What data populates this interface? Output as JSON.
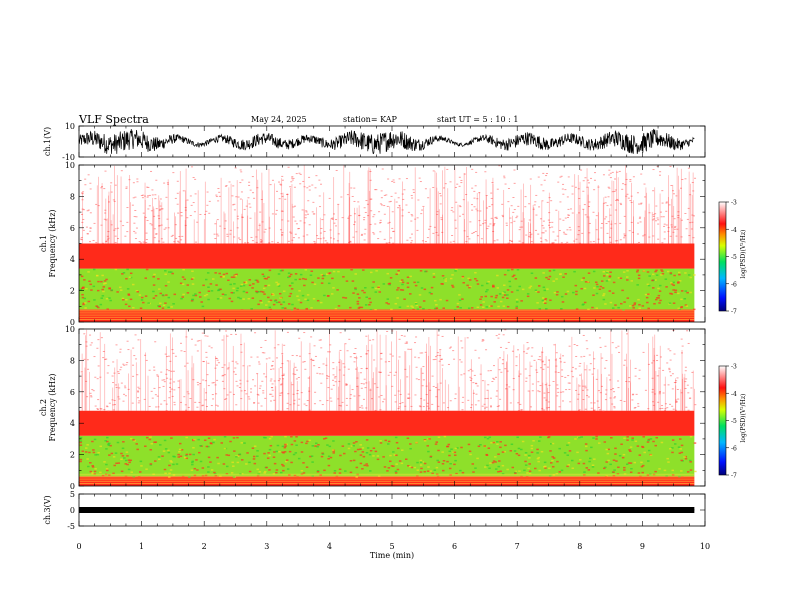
{
  "header": {
    "title": "VLF Spectra",
    "date": "May 24, 2025",
    "station": "station= KAP",
    "start": "start  UT  =   5  : 10 : 1"
  },
  "colors": {
    "spectrogram_low": "#ffffff",
    "spectrogram_mid": "#ff2020",
    "spectrogram_band": "#7fe01a",
    "trace": "#000000"
  },
  "chart_data": [
    {
      "type": "line",
      "panel": "ch1-waveform",
      "ylabel": "ch.1(V)",
      "ylim": [
        -10,
        10
      ],
      "yticks": [
        "10",
        "-10"
      ],
      "xlim": [
        0,
        10
      ],
      "x_end": 9.83,
      "series": [
        {
          "values_range": [
            -8,
            8
          ]
        }
      ]
    },
    {
      "type": "heatmap",
      "panel": "ch1-spectrogram",
      "ylabel": "ch.1\nFrequency (kHz)",
      "ylim": [
        0,
        10
      ],
      "yticks": [
        "0",
        "2",
        "4",
        "6",
        "8",
        "10"
      ],
      "xlim": [
        0,
        10
      ],
      "x_end": 9.83,
      "bands_khz": [
        {
          "from": 0,
          "to": 0.8,
          "level": "mid"
        },
        {
          "from": 0.8,
          "to": 3.4,
          "level": "band"
        },
        {
          "from": 3.4,
          "to": 5.0,
          "level": "mid"
        },
        {
          "from": 5.0,
          "to": 10,
          "level": "low"
        }
      ],
      "colorbar": {
        "label": "log(PSD)(V²/Hz)",
        "ticks": [
          "-3",
          "-4",
          "-5",
          "-6",
          "-7"
        ],
        "range": [
          -7,
          -3
        ]
      }
    },
    {
      "type": "heatmap",
      "panel": "ch2-spectrogram",
      "ylabel": "ch.2\nFrequency (kHz)",
      "ylim": [
        0,
        10
      ],
      "yticks": [
        "0",
        "2",
        "4",
        "6",
        "8",
        "10"
      ],
      "xlim": [
        0,
        10
      ],
      "x_end": 9.83,
      "bands_khz": [
        {
          "from": 0,
          "to": 0.6,
          "level": "mid"
        },
        {
          "from": 0.6,
          "to": 3.2,
          "level": "band"
        },
        {
          "from": 3.2,
          "to": 4.8,
          "level": "mid"
        },
        {
          "from": 4.8,
          "to": 10,
          "level": "low"
        }
      ],
      "colorbar": {
        "label": "log(PSD)(V²/Hz)",
        "ticks": [
          "-3",
          "-4",
          "-5",
          "-6",
          "-7"
        ],
        "range": [
          -7,
          -3
        ]
      }
    },
    {
      "type": "line",
      "panel": "ch3-waveform",
      "ylabel": "ch.3(V)",
      "ylim": [
        -5,
        5
      ],
      "yticks": [
        "5",
        "0",
        "-5"
      ],
      "xlim": [
        0,
        10
      ],
      "x_end": 9.83,
      "series": [
        {
          "values_range": [
            -0.5,
            0.5
          ]
        }
      ],
      "xlabel": "Time  (min)",
      "xticks": [
        "0",
        "1",
        "2",
        "3",
        "4",
        "5",
        "6",
        "7",
        "8",
        "9",
        "10"
      ]
    }
  ]
}
